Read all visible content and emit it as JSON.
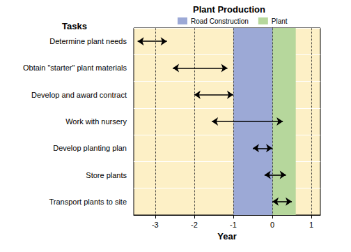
{
  "chart_data": {
    "type": "gantt",
    "title": "Plant Production",
    "y_label": "Tasks",
    "x_label": "Year",
    "categories": [
      "Determine plant needs",
      "Obtain \"starter\" plant materials",
      "Develop and award contract",
      "Work with nursery",
      "Develop planting plan",
      "Store plants",
      "Transport plants to site"
    ],
    "start": [
      -3.45,
      -2.55,
      -2.0,
      -1.55,
      -0.5,
      -0.2,
      0.0
    ],
    "end": [
      -2.7,
      -1.15,
      -1.0,
      0.27,
      0.0,
      0.35,
      0.5
    ],
    "bands": [
      {
        "name": "Road Construction",
        "color": "#9ca9d6",
        "start": -1,
        "end": 0
      },
      {
        "name": "Plant",
        "color": "#b6d79c",
        "start": 0,
        "end": 0.6
      }
    ],
    "marker": "arrow",
    "xlim": [
      -3.55,
      1.23
    ],
    "xticks": [
      -3,
      -2,
      -1,
      0,
      1
    ],
    "grid": true,
    "legend": "top"
  }
}
